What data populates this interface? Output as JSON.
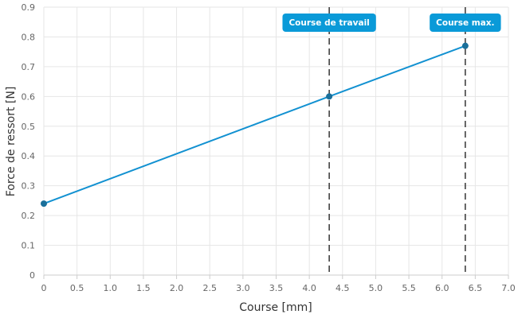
{
  "chart_data": {
    "type": "line",
    "title": "",
    "xlabel": "Course [mm]",
    "ylabel": "Force de ressort [N]",
    "xlim": [
      0,
      7.0
    ],
    "ylim": [
      0,
      0.9
    ],
    "x_ticks": [
      "0",
      "0.5",
      "1.0",
      "1.5",
      "2.0",
      "2.5",
      "3.0",
      "3.5",
      "4.0",
      "4.5",
      "5.0",
      "5.5",
      "6.0",
      "6.5",
      "7.0"
    ],
    "y_ticks": [
      "0",
      "0.1",
      "0.2",
      "0.3",
      "0.4",
      "0.5",
      "0.6",
      "0.7",
      "0.8",
      "0.9"
    ],
    "grid": true,
    "series": [
      {
        "color": "#1291d1",
        "points": [
          {
            "x": 0,
            "y": 0.24
          },
          {
            "x": 4.3,
            "y": 0.6
          },
          {
            "x": 6.35,
            "y": 0.77
          }
        ]
      }
    ],
    "markers": [
      {
        "x": 4.3,
        "label": "Course de travail"
      },
      {
        "x": 6.35,
        "label": "Course max."
      }
    ],
    "colors": {
      "line": "#1291d1",
      "point": "#1a6f9a",
      "label_bg": "#0a9ad8",
      "grid": "#e6e6e6",
      "marker_line": "#333333"
    }
  }
}
